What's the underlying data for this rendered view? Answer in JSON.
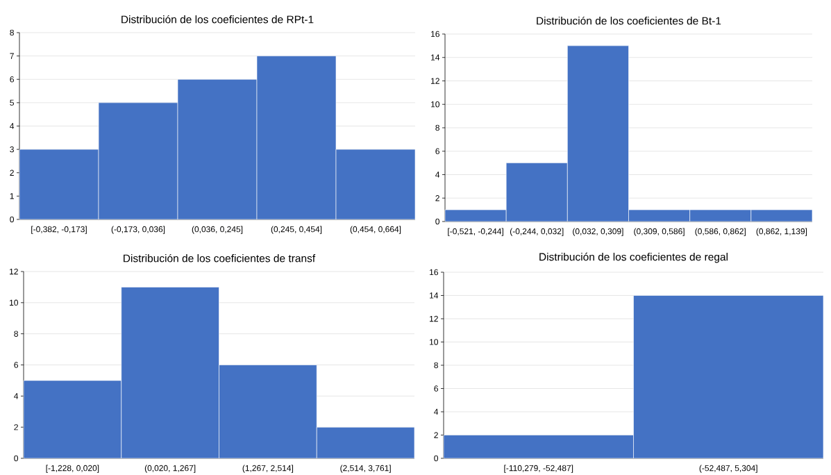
{
  "chart_data": [
    {
      "type": "bar",
      "title": "Distribución de los coeficientes de RPt-1",
      "categories": [
        "[-0,382, -0,173]",
        "(-0,173, 0,036]",
        "(0,036, 0,245]",
        "(0,245, 0,454]",
        "(0,454, 0,664]"
      ],
      "values": [
        3,
        5,
        6,
        7,
        3
      ],
      "color": "#4472c4",
      "ylim": [
        0,
        8
      ],
      "yticks": [
        0,
        1,
        2,
        3,
        4,
        5,
        6,
        7,
        8
      ],
      "grid": "y"
    },
    {
      "type": "bar",
      "title": "Distribución de los coeficientes de Bt-1",
      "categories": [
        "[-0,521, -0,244]",
        "(-0,244, 0,032]",
        "(0,032, 0,309]",
        "(0,309, 0,586]",
        "(0,586, 0,862]",
        "(0,862, 1,139]"
      ],
      "values": [
        1,
        5,
        15,
        1,
        1,
        1
      ],
      "color": "#4472c4",
      "ylim": [
        0,
        16
      ],
      "yticks": [
        0,
        2,
        4,
        6,
        8,
        10,
        12,
        14,
        16
      ],
      "grid": "y"
    },
    {
      "type": "bar",
      "title": "Distribución de los coeficientes de transf",
      "categories": [
        "[-1,228, 0,020]",
        "(0,020, 1,267]",
        "(1,267, 2,514]",
        "(2,514, 3,761]"
      ],
      "values": [
        5,
        11,
        6,
        2
      ],
      "color": "#4472c4",
      "ylim": [
        0,
        12
      ],
      "yticks": [
        0,
        2,
        4,
        6,
        8,
        10,
        12
      ],
      "grid": "y"
    },
    {
      "type": "bar",
      "title": "Distribución de los coeficientes de regal",
      "categories": [
        "[-110,279, -52,487]",
        "(-52,487, 5,304]"
      ],
      "values": [
        2,
        14
      ],
      "color": "#4472c4",
      "ylim": [
        0,
        16
      ],
      "yticks": [
        0,
        2,
        4,
        6,
        8,
        10,
        12,
        14,
        16
      ],
      "grid": "y"
    }
  ]
}
